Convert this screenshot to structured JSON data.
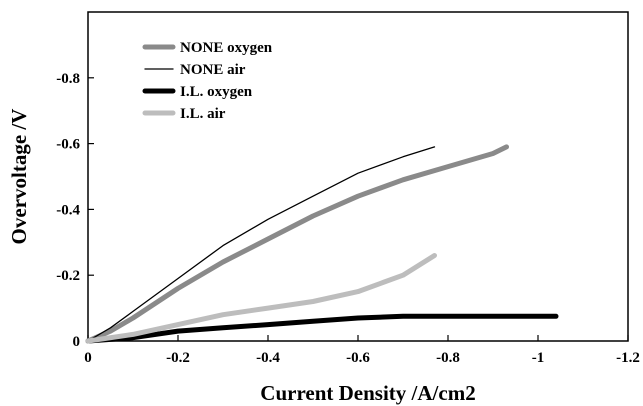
{
  "chart_data": {
    "type": "line",
    "title": "",
    "xlabel": "Current Density /A/cm2",
    "ylabel": "Overvoltage /V",
    "xlim": [
      0,
      -1.2
    ],
    "ylim": [
      0,
      -1.0
    ],
    "x_ticks": [
      "0",
      "-0.2",
      "-0.4",
      "-0.6",
      "-0.8",
      "-1",
      "-1.2"
    ],
    "y_ticks": [
      "0",
      "-0.2",
      "-0.4",
      "-0.6",
      "-0.8"
    ],
    "x_tick_values": [
      0,
      -0.2,
      -0.4,
      -0.6,
      -0.8,
      -1.0,
      -1.2
    ],
    "y_tick_values": [
      0,
      -0.2,
      -0.4,
      -0.6,
      -0.8
    ],
    "grid": false,
    "legend_position": "top-left",
    "series": [
      {
        "name": "NONE oxygen",
        "color": "#8a8a8a",
        "width": "thick",
        "x": [
          0,
          -0.05,
          -0.1,
          -0.2,
          -0.3,
          -0.4,
          -0.5,
          -0.6,
          -0.7,
          -0.8,
          -0.9,
          -0.93
        ],
        "y": [
          0,
          -0.03,
          -0.07,
          -0.16,
          -0.24,
          -0.31,
          -0.38,
          -0.44,
          -0.49,
          -0.53,
          -0.57,
          -0.59
        ]
      },
      {
        "name": "NONE air",
        "color": "#000000",
        "width": "thin",
        "x": [
          0,
          -0.05,
          -0.1,
          -0.2,
          -0.3,
          -0.4,
          -0.5,
          -0.6,
          -0.7,
          -0.77
        ],
        "y": [
          0,
          -0.04,
          -0.09,
          -0.19,
          -0.29,
          -0.37,
          -0.44,
          -0.51,
          -0.56,
          -0.59
        ]
      },
      {
        "name": "I.L. oxygen",
        "color": "#000000",
        "width": "thick",
        "x": [
          0,
          -0.1,
          -0.2,
          -0.3,
          -0.4,
          -0.5,
          -0.6,
          -0.7,
          -0.8,
          -0.9,
          -1.0,
          -1.04
        ],
        "y": [
          0,
          -0.01,
          -0.03,
          -0.04,
          -0.05,
          -0.06,
          -0.07,
          -0.075,
          -0.075,
          -0.075,
          -0.075,
          -0.075
        ]
      },
      {
        "name": "I.L. air",
        "color": "#bdbdbd",
        "width": "thick",
        "x": [
          0,
          -0.1,
          -0.2,
          -0.3,
          -0.4,
          -0.5,
          -0.6,
          -0.7,
          -0.77
        ],
        "y": [
          0,
          -0.02,
          -0.05,
          -0.08,
          -0.1,
          -0.12,
          -0.15,
          -0.2,
          -0.26
        ]
      }
    ]
  }
}
